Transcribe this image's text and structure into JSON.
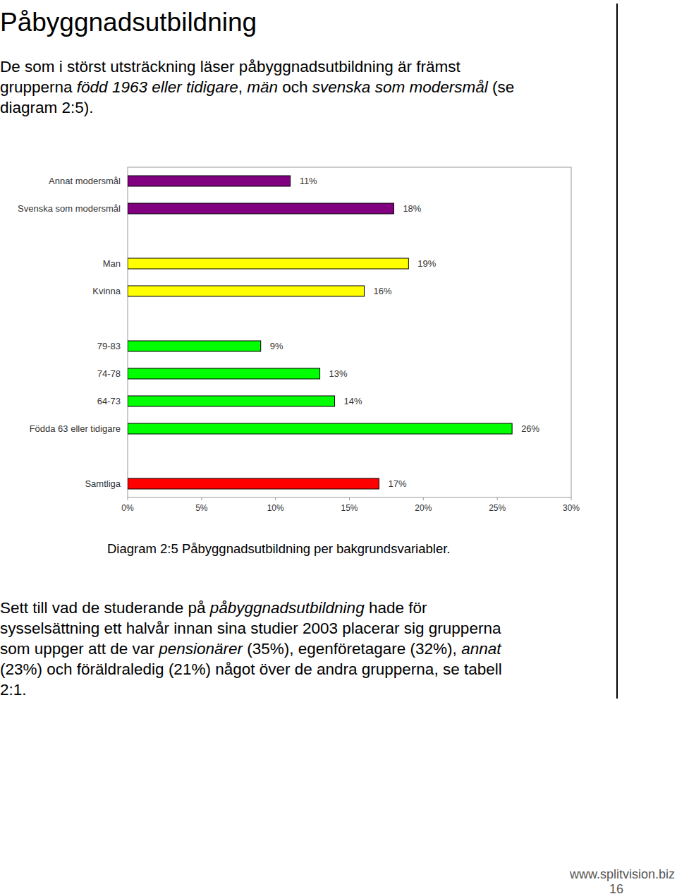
{
  "header": {
    "title": "Påbyggnadsutbildning"
  },
  "intro": {
    "lines": [
      [
        {
          "text": "De som i störst utsträckning läser påbyggnadsutbildning är främst",
          "italic": false
        }
      ],
      [
        {
          "text": "grupperna ",
          "italic": false
        },
        {
          "text": "född 1963 eller tidigare",
          "italic": true
        },
        {
          "text": ", ",
          "italic": false
        },
        {
          "text": "män",
          "italic": true
        },
        {
          "text": " och ",
          "italic": false
        },
        {
          "text": "svenska som modersmål",
          "italic": true
        },
        {
          "text": " (se",
          "italic": false
        }
      ],
      [
        {
          "text": "diagram 2:5).",
          "italic": false
        }
      ]
    ]
  },
  "chart_data": {
    "type": "bar",
    "orientation": "horizontal",
    "categories": [
      "Annat modersmål",
      "Svenska som modersmål",
      "Man",
      "Kvinna",
      "79-83",
      "74-78",
      "64-73",
      "Födda 63 eller tidigare",
      "Samtliga"
    ],
    "values": [
      11,
      18,
      19,
      16,
      9,
      13,
      14,
      26,
      17
    ],
    "value_labels": [
      "11%",
      "18%",
      "19%",
      "16%",
      "9%",
      "13%",
      "14%",
      "26%",
      "17%"
    ],
    "colors": [
      "#800080",
      "#800080",
      "#ffff00",
      "#ffff00",
      "#00ff00",
      "#00ff00",
      "#00ff00",
      "#00ff00",
      "#ff0000"
    ],
    "data_labels": true,
    "xlim": [
      0,
      30
    ],
    "xticks": [
      {
        "value": 0,
        "label": "0%"
      },
      {
        "value": 5,
        "label": "5%"
      },
      {
        "value": 10,
        "label": "10%"
      },
      {
        "value": 15,
        "label": "15%"
      },
      {
        "value": 20,
        "label": "20%"
      },
      {
        "value": 25,
        "label": "25%"
      },
      {
        "value": 30,
        "label": "30%"
      }
    ]
  },
  "caption": "Diagram 2:5 Påbyggnadsutbildning per bakgrundsvariabler.",
  "body": {
    "lines": [
      [
        {
          "text": "Sett till vad de studerande på ",
          "italic": false
        },
        {
          "text": "påbyggnadsutbildning",
          "italic": true
        },
        {
          "text": " hade för",
          "italic": false
        }
      ],
      [
        {
          "text": "sysselsättning ett halvår innan sina studier 2003 placerar sig grupperna",
          "italic": false
        }
      ],
      [
        {
          "text": "som uppger att de var ",
          "italic": false
        },
        {
          "text": "pensionärer",
          "italic": true
        },
        {
          "text": " (35%), egenföretagare (32%), ",
          "italic": false
        },
        {
          "text": "annat",
          "italic": true
        }
      ],
      [
        {
          "text": "(23%) och föräldraledig (21%) något över de andra grupperna, se tabell",
          "italic": false
        }
      ],
      [
        {
          "text": "2:1.",
          "italic": false
        }
      ]
    ]
  },
  "footer": {
    "url": "www.splitvision.biz",
    "page": "16"
  }
}
